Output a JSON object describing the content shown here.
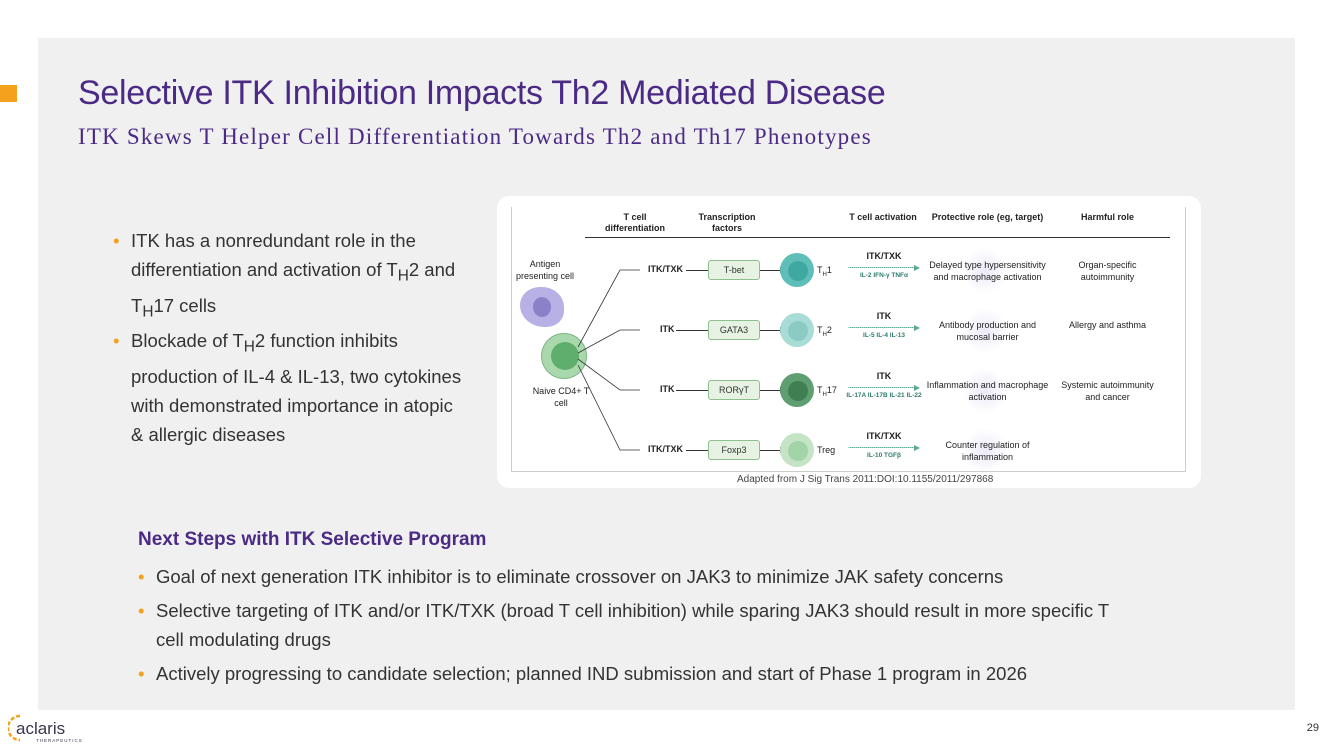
{
  "title": "Selective ITK Inhibition Impacts Th2 Mediated Disease",
  "subtitle": "ITK Skews T Helper Cell Differentiation Towards Th2 and Th17 Phenotypes",
  "left_bullets": [
    {
      "a": "ITK has a nonredundant role in the differentiation and activation of T",
      "s1": "H",
      "b": "2 and T",
      "s2": "H",
      "c": "17 cells"
    },
    {
      "a": "Blockade of T",
      "s1": "H",
      "b": "2 function inhibits production of IL-4 & IL-13, two cytokines with demonstrated importance in atopic & allergic diseases"
    }
  ],
  "diagram": {
    "headers": [
      "T cell differentiation",
      "Transcription factors",
      "T cell activation",
      "Protective role (eg, target)",
      "Harmful role"
    ],
    "apc_label": "Antigen presenting cell",
    "naive_label": "Naive CD4+ T cell",
    "rows": [
      {
        "kinase": "ITK/TXK",
        "tf": "T-bet",
        "cell": "T",
        "sub": "H",
        "num": "1",
        "act": "ITK/TXK",
        "cytokines": "IL-2  IFN-γ  TNFα",
        "protective": "Delayed type hypersensitivity and macrophage activation",
        "harmful": "Organ-specific autoimmunity",
        "color": "#5fbfb8",
        "inner": "#3fa8a0"
      },
      {
        "kinase": "ITK",
        "tf": "GATA3",
        "cell": "T",
        "sub": "H",
        "num": "2",
        "act": "ITK",
        "cytokines": "IL-5  IL-4  IL-13",
        "protective": "Antibody production and mucosal barrier",
        "harmful": "Allergy and asthma",
        "color": "#a8dcd6",
        "inner": "#8ccbc3"
      },
      {
        "kinase": "ITK",
        "tf": "RORγT",
        "cell": "T",
        "sub": "H",
        "num": "17",
        "act": "ITK",
        "cytokines": "IL-17A  IL-17B  IL-21  IL-22",
        "protective": "Inflammation and macrophage activation",
        "harmful": "Systemic autoimmunity and cancer",
        "color": "#5f9e70",
        "inner": "#3f7f52"
      },
      {
        "kinase": "ITK/TXK",
        "tf": "Foxp3",
        "cell": "Treg",
        "sub": "",
        "num": "",
        "act": "ITK/TXK",
        "cytokines": "IL-10   TGFβ",
        "protective": "Counter regulation of inflammation",
        "harmful": "",
        "color": "#c5e3c5",
        "inner": "#a3d3a8"
      }
    ]
  },
  "caption": {
    "text": "Adapted from J Sig Trans 2011:DOI:",
    "link": "10.1155/2011/297868"
  },
  "next_steps": {
    "title": "Next Steps with ITK Selective Program",
    "items": [
      "Goal of next generation ITK inhibitor is to eliminate crossover on JAK3 to minimize JAK safety concerns",
      "Selective targeting of ITK and/or ITK/TXK (broad T cell inhibition) while sparing JAK3 should result in more specific T cell modulating drugs",
      "Actively progressing to candidate selection; planned IND submission and start of Phase 1 program in 2026"
    ]
  },
  "logo": {
    "name": "aclaris",
    "tagline": "THERAPEUTICS"
  },
  "page_number": "29"
}
